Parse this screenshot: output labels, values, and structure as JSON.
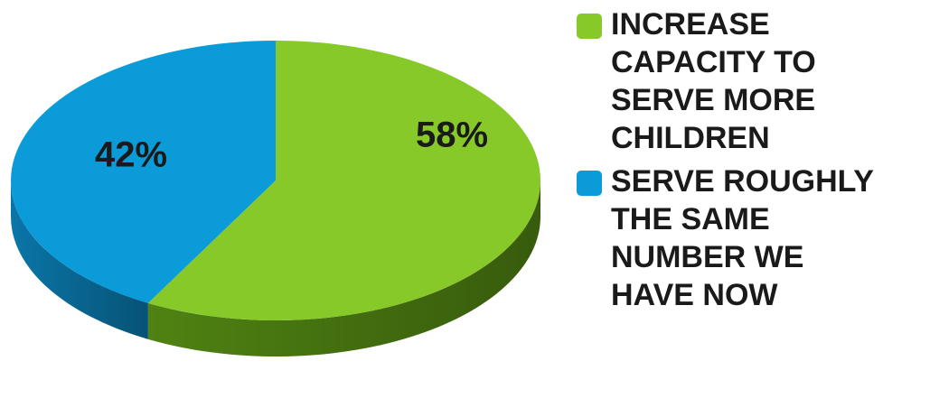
{
  "chart_data": {
    "type": "pie",
    "series": [
      {
        "name": "INCREASE CAPACITY TO SERVE MORE CHILDREN",
        "color": "#86c928",
        "side_color": "#4f8212"
      },
      {
        "name": "SERVE ROUGHLY THE SAME NUMBER WE HAVE NOW",
        "color": "#0b9bd9",
        "side_color": "#0a76a8"
      }
    ],
    "values": [
      58,
      42
    ],
    "value_labels": [
      "58%",
      "42%"
    ],
    "legend": "right"
  }
}
